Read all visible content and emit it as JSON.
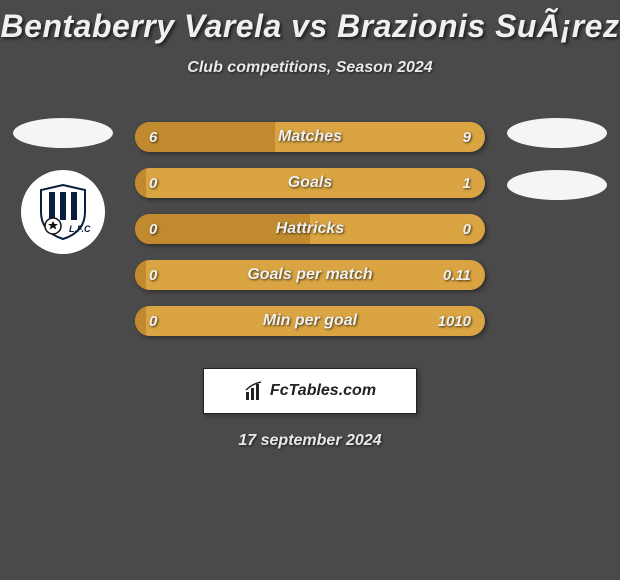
{
  "header": {
    "title": "Bentaberry Varela vs Brazionis SuÃ¡rez",
    "subtitle": "Club competitions, Season 2024"
  },
  "left_player": {
    "has_flag_placeholder": true,
    "has_club_badge": true
  },
  "right_player": {
    "has_flag_placeholder": true,
    "has_club_placeholder": true
  },
  "stats": {
    "bar_bg_color": "#d9a441",
    "bar_fill_color": "#c18a2e",
    "rows": [
      {
        "label": "Matches",
        "left": "6",
        "right": "9",
        "left_share": 0.4
      },
      {
        "label": "Goals",
        "left": "0",
        "right": "1",
        "left_share": 0.03
      },
      {
        "label": "Hattricks",
        "left": "0",
        "right": "0",
        "left_share": 0.5
      },
      {
        "label": "Goals per match",
        "left": "0",
        "right": "0.11",
        "left_share": 0.03
      },
      {
        "label": "Min per goal",
        "left": "0",
        "right": "1010",
        "left_share": 0.03
      }
    ]
  },
  "brand": {
    "text": "FcTables.com"
  },
  "date": "17 september 2024",
  "colors": {
    "background": "#4a4a4a",
    "text": "#f0f0f0"
  }
}
